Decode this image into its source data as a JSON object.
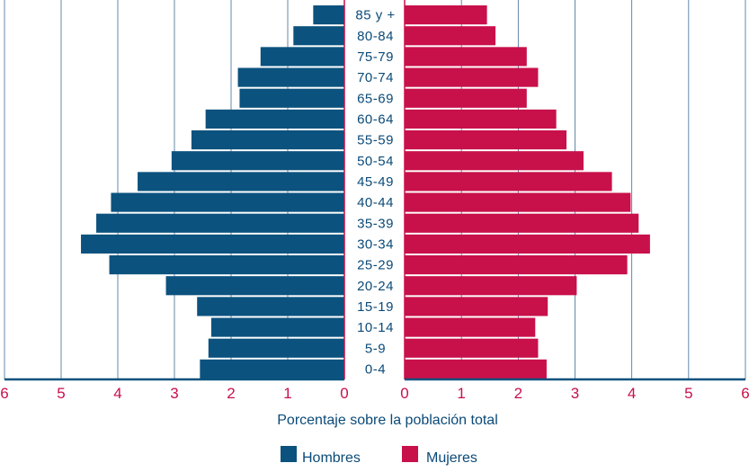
{
  "chart_data": {
    "type": "bar",
    "subtype": "population-pyramid",
    "categories": [
      "0-4",
      "5-9",
      "10-14",
      "15-19",
      "20-24",
      "25-29",
      "30-34",
      "35-39",
      "40-44",
      "45-49",
      "50-54",
      "55-59",
      "60-64",
      "65-69",
      "70-74",
      "75-79",
      "80-84",
      "85 y +"
    ],
    "series": [
      {
        "name": "Hombres",
        "color": "#0b527e",
        "values": [
          2.55,
          2.4,
          2.35,
          2.6,
          3.15,
          4.15,
          4.65,
          4.38,
          4.12,
          3.65,
          3.05,
          2.7,
          2.45,
          1.85,
          1.88,
          1.48,
          0.9,
          0.55
        ]
      },
      {
        "name": "Mujeres",
        "color": "#c8104a",
        "values": [
          2.5,
          2.35,
          2.3,
          2.52,
          3.03,
          3.92,
          4.32,
          4.12,
          3.98,
          3.65,
          3.15,
          2.85,
          2.67,
          2.15,
          2.35,
          2.15,
          1.6,
          1.45
        ]
      }
    ],
    "xlabel": "Porcentaje sobre la población total",
    "left_ticks": [
      "6",
      "5",
      "4",
      "3",
      "2",
      "1",
      "0"
    ],
    "right_ticks": [
      "0",
      "1",
      "2",
      "3",
      "4",
      "5",
      "6"
    ],
    "xlim": [
      0,
      6
    ],
    "grid": true,
    "legend_position": "bottom-center"
  },
  "legend": {
    "male": "Hombres",
    "female": "Mujeres"
  }
}
